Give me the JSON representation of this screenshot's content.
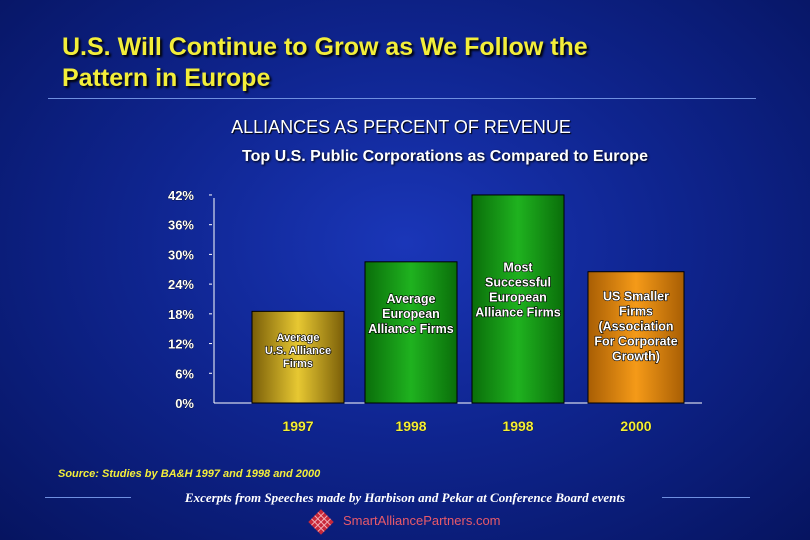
{
  "slide": {
    "title_line1": "U.S. Will Continue to Grow as We Follow the",
    "title_line2": "Pattern in Europe",
    "source": "Source: Studies by BA&H 1997 and 1998 and 2000",
    "footer": "Excerpts from Speeches made by Harbison and Pekar at Conference Board events",
    "site": "SmartAlliancePartners.com"
  },
  "colors": {
    "title": "#f3ee3a",
    "background": "#0f2590",
    "bar_gold": "#c9a818",
    "bar_green": "#129a12",
    "bar_orange": "#e0860a"
  },
  "chart_data": {
    "type": "bar",
    "title": "ALLIANCES AS PERCENT OF REVENUE",
    "subtitle": "Top U.S. Public Corporations as Compared to Europe",
    "categories": [
      "1997",
      "1998",
      "1998",
      "2000"
    ],
    "values": [
      18.5,
      28.5,
      42,
      26.5
    ],
    "bar_labels": [
      [
        "Average",
        "U.S. Alliance",
        "Firms"
      ],
      [
        "Average",
        "European",
        "Alliance Firms"
      ],
      [
        "Most",
        "Successful",
        "European",
        "Alliance Firms"
      ],
      [
        "US Smaller",
        "Firms",
        "(Association",
        "For Corporate",
        "Growth)"
      ]
    ],
    "bar_colors": [
      "#c9a818",
      "#129a12",
      "#129a12",
      "#e0860a"
    ],
    "y_ticks": [
      "0%",
      "6%",
      "12%",
      "18%",
      "24%",
      "30%",
      "36%",
      "42%"
    ],
    "y_tick_values": [
      0,
      6,
      12,
      18,
      24,
      30,
      36,
      42
    ],
    "ylim": [
      0,
      43
    ],
    "grid": false,
    "legend": "none"
  }
}
